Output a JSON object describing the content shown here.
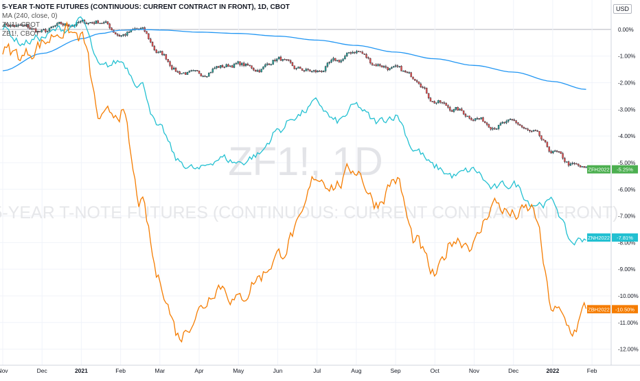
{
  "header": {
    "title": "5-YEAR T-NOTE FUTURES (CONTINUOUS: CURRENT CONTRACT IN FRONT), 1D, CBOT",
    "indicator": "MA (240, close, 0)",
    "compare_1": "ZN1!, CBOT",
    "compare_2": "ZB1!, CBOT",
    "currency": "USD"
  },
  "watermark": {
    "symbol": "ZF1!, 1D",
    "description": "5-YEAR T-NOTE FUTURES (CONTINUOUS: CURRENT CONTRACT IN FRONT)"
  },
  "colors": {
    "candle_up": "#26a69a",
    "candle_down": "#ef5350",
    "candle_body": "#1e222d",
    "ma_line": "#2196f3",
    "zn_line": "#22c0d1",
    "zb_line": "#f57c00",
    "zf_badge": "#4caf50"
  },
  "chart_data": {
    "type": "line",
    "x_axis": {
      "tick_labels": [
        "Nov",
        "Dec",
        "2021",
        "Feb",
        "Mar",
        "Apr",
        "May",
        "Jun",
        "Jul",
        "Aug",
        "Sep",
        "Oct",
        "Nov",
        "Dec",
        "2022",
        "Feb"
      ],
      "tick_months": [
        0,
        1,
        2,
        3,
        4,
        5,
        6,
        7,
        8,
        9,
        10,
        11,
        12,
        13,
        14,
        15
      ]
    },
    "y_axis": {
      "unit": "%",
      "ylim": [
        -12.5,
        0.9
      ],
      "tick_values": [
        0,
        -1,
        -2,
        -3,
        -4,
        -5,
        -6,
        -7,
        -8,
        -9,
        -10,
        -11,
        -12
      ],
      "tick_labels": [
        "0.00%",
        "-1.00%",
        "-2.00%",
        "-3.00%",
        "-4.00%",
        "-5.00%",
        "-6.00%",
        "-7.00%",
        "-8.00%",
        "-9.00%",
        "-10.00%",
        "-11.00%",
        "-12.00%"
      ]
    },
    "grid": true,
    "series": [
      {
        "name": "ZF1!",
        "kind": "candles",
        "x": [
          0.0,
          0.5,
          1.0,
          1.5,
          2.0,
          2.5,
          3.0,
          3.5,
          4.0,
          4.5,
          5.0,
          5.5,
          6.0,
          6.5,
          7.0,
          7.5,
          8.0,
          8.5,
          9.0,
          9.5,
          10.0,
          10.5,
          11.0,
          11.5,
          12.0,
          12.5,
          13.0,
          13.5,
          14.0,
          14.5,
          14.85
        ],
        "y": [
          0.2,
          0.1,
          -0.1,
          0.15,
          0.25,
          0.3,
          -0.2,
          0.0,
          -0.9,
          -1.6,
          -1.7,
          -1.4,
          -1.3,
          -1.5,
          -1.1,
          -1.5,
          -1.6,
          -1.2,
          -0.8,
          -1.3,
          -1.5,
          -1.8,
          -2.7,
          -3.0,
          -3.3,
          -3.6,
          -3.5,
          -3.9,
          -4.6,
          -5.1,
          -5.25
        ],
        "last_label": "ZFH2022",
        "last_value": "-5.25%"
      },
      {
        "name": "MA (240, close, 0)",
        "kind": "line",
        "x": [
          0.0,
          1.0,
          2.0,
          2.5,
          3.0,
          3.5,
          4.0,
          5.0,
          6.0,
          7.0,
          8.0,
          9.0,
          10.0,
          11.0,
          12.0,
          13.0,
          14.0,
          14.85
        ],
        "y": [
          -1.55,
          -0.9,
          -0.35,
          -0.15,
          -0.03,
          0.0,
          -0.02,
          -0.1,
          -0.15,
          -0.25,
          -0.4,
          -0.6,
          -0.85,
          -1.1,
          -1.35,
          -1.6,
          -1.95,
          -2.25
        ]
      },
      {
        "name": "ZN1!",
        "kind": "line",
        "x": [
          0.0,
          0.5,
          1.0,
          1.5,
          2.0,
          2.5,
          3.0,
          3.5,
          4.0,
          4.5,
          5.0,
          5.5,
          6.0,
          6.5,
          7.0,
          7.5,
          8.0,
          8.5,
          9.0,
          9.5,
          10.0,
          10.5,
          11.0,
          11.5,
          12.0,
          12.5,
          13.0,
          13.5,
          14.0,
          14.5,
          14.85
        ],
        "y": [
          0.0,
          -0.5,
          -0.3,
          0.0,
          0.3,
          -1.5,
          -1.2,
          -2.0,
          -3.8,
          -5.0,
          -5.3,
          -4.8,
          -5.0,
          -4.7,
          -3.8,
          -3.2,
          -2.8,
          -3.5,
          -2.9,
          -3.5,
          -3.2,
          -4.5,
          -5.2,
          -5.5,
          -5.3,
          -6.0,
          -5.8,
          -6.5,
          -6.5,
          -8.0,
          -7.81
        ],
        "last_label": "ZNH2022",
        "last_value": "-7.81%"
      },
      {
        "name": "ZB1!",
        "kind": "line",
        "x": [
          0.0,
          0.5,
          1.0,
          1.5,
          2.0,
          2.5,
          3.0,
          3.5,
          4.0,
          4.5,
          5.0,
          5.5,
          6.0,
          6.5,
          7.0,
          7.5,
          8.0,
          8.5,
          9.0,
          9.5,
          10.0,
          10.5,
          11.0,
          11.5,
          12.0,
          12.5,
          13.0,
          13.5,
          14.0,
          14.5,
          14.85
        ],
        "y": [
          -0.8,
          -1.0,
          -0.5,
          0.0,
          -0.3,
          -3.5,
          -3.0,
          -6.5,
          -9.5,
          -11.5,
          -10.5,
          -9.5,
          -10.2,
          -9.3,
          -8.5,
          -7.5,
          -5.5,
          -5.8,
          -5.2,
          -6.5,
          -5.6,
          -8.0,
          -9.3,
          -7.8,
          -8.0,
          -6.5,
          -7.0,
          -6.8,
          -10.5,
          -11.3,
          -10.5
        ],
        "last_label": "ZBH2022",
        "last_value": "-10.50%"
      }
    ]
  }
}
